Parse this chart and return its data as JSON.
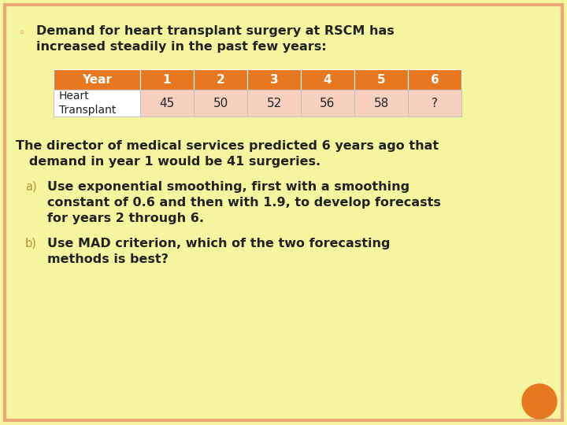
{
  "background_color": "#F5F5A0",
  "border_color": "#E8A878",
  "bullet_color": "#E87820",
  "bullet_text": "◦",
  "title_line1": "Demand for heart transplant surgery at RSCM has",
  "title_line2": "increased steadily in the past few years:",
  "table_header": [
    "Year",
    "1",
    "2",
    "3",
    "4",
    "5",
    "6"
  ],
  "table_row_label": "Heart\nTransplant",
  "table_row_values": [
    "45",
    "50",
    "52",
    "56",
    "58",
    "?"
  ],
  "table_header_bg": "#E87820",
  "table_header_text": "#FFFFFF",
  "table_row_bg": "#F8D0C0",
  "table_row_text": "#222222",
  "table_label_bg": "#FFFFFF",
  "body_text_color": "#222222",
  "body_line1": "The director of medical services predicted 6 years ago that",
  "body_line2": "   demand in year 1 would be 41 surgeries.",
  "sub_a_label": "a)",
  "sub_a_line1": "Use exponential smoothing, first with a smoothing",
  "sub_a_line2": "constant of 0.6 and then with 1.9, to develop forecasts",
  "sub_a_line3": "for years 2 through 6.",
  "sub_b_label": "b)",
  "sub_b_line1": "Use MAD criterion, which of the two forecasting",
  "sub_b_line2": "methods is best?",
  "sub_label_color": "#B09030",
  "orange_circle_color": "#E87820",
  "font_family": "DejaVu Sans"
}
